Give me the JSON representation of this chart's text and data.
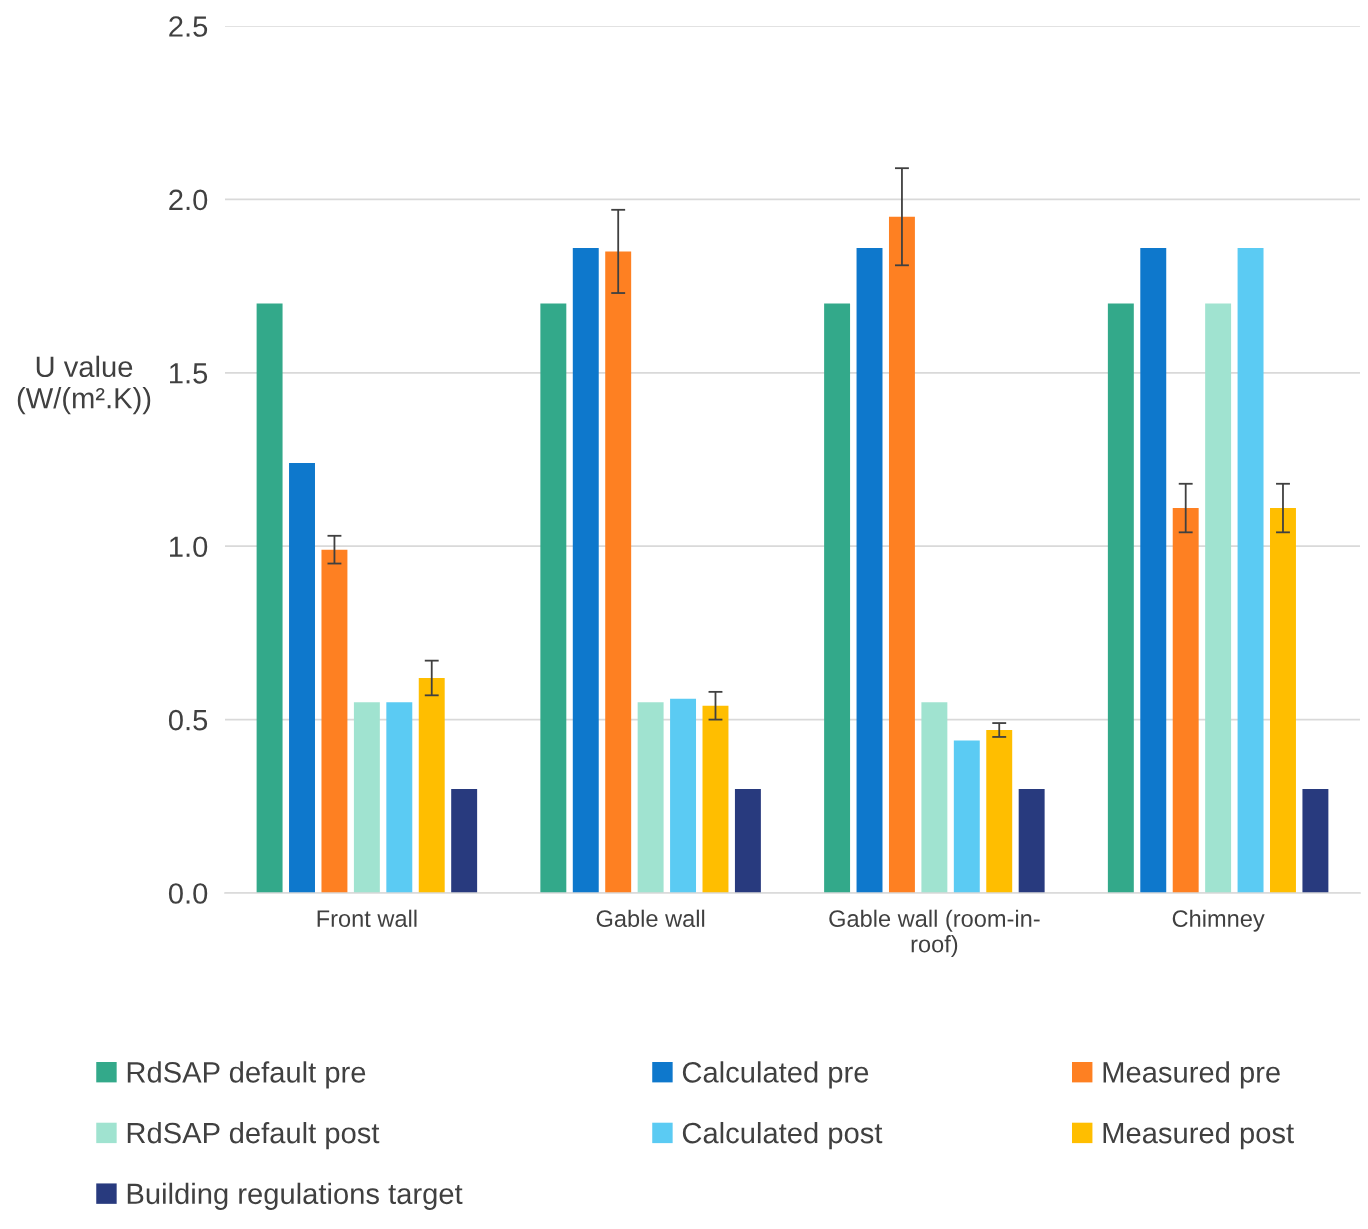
{
  "chart_data": {
    "type": "bar",
    "ylabel": "U value\n(W/(m².K))",
    "categories": [
      "Front wall",
      "Gable wall",
      "Gable wall (room-in-\nroof)",
      "Chimney"
    ],
    "ylim": [
      0,
      2.5
    ],
    "yticks": [
      {
        "value": 0,
        "label": "0.0"
      },
      {
        "value": 0.5,
        "label": "0.5"
      },
      {
        "value": 1,
        "label": "1.0"
      },
      {
        "value": 1.5,
        "label": "1.5"
      },
      {
        "value": 2,
        "label": "2.0"
      },
      {
        "value": 2.5,
        "label": "2.5"
      }
    ],
    "grid": "y",
    "legend": "bottom",
    "series": [
      {
        "name": "RdSAP default pre",
        "color": "#33a98a",
        "values": [
          1.7,
          1.7,
          1.7,
          1.7
        ]
      },
      {
        "name": "Calculated pre",
        "color": "#0e78cc",
        "values": [
          1.24,
          1.86,
          1.86,
          1.86
        ]
      },
      {
        "name": "Measured pre",
        "color": "#fe8022",
        "values": [
          0.99,
          1.85,
          1.95,
          1.11
        ],
        "errors": [
          [
            0.95,
            1.03
          ],
          [
            1.73,
            1.97
          ],
          [
            1.81,
            2.09
          ],
          [
            1.04,
            1.18
          ]
        ]
      },
      {
        "name": "RdSAP default post",
        "color": "#a0e3d0",
        "values": [
          0.55,
          0.55,
          0.55,
          1.7
        ]
      },
      {
        "name": "Calculated post",
        "color": "#5bcbf3",
        "values": [
          0.55,
          0.56,
          0.44,
          1.86
        ]
      },
      {
        "name": "Measured post",
        "color": "#ffbe00",
        "values": [
          0.62,
          0.54,
          0.47,
          1.11
        ],
        "errors": [
          [
            0.57,
            0.67
          ],
          [
            0.5,
            0.58
          ],
          [
            0.45,
            0.49
          ],
          [
            1.04,
            1.18
          ]
        ]
      },
      {
        "name": "Building regulations target",
        "color": "#283a7e",
        "values": [
          0.3,
          0.3,
          0.3,
          0.3
        ]
      }
    ]
  }
}
